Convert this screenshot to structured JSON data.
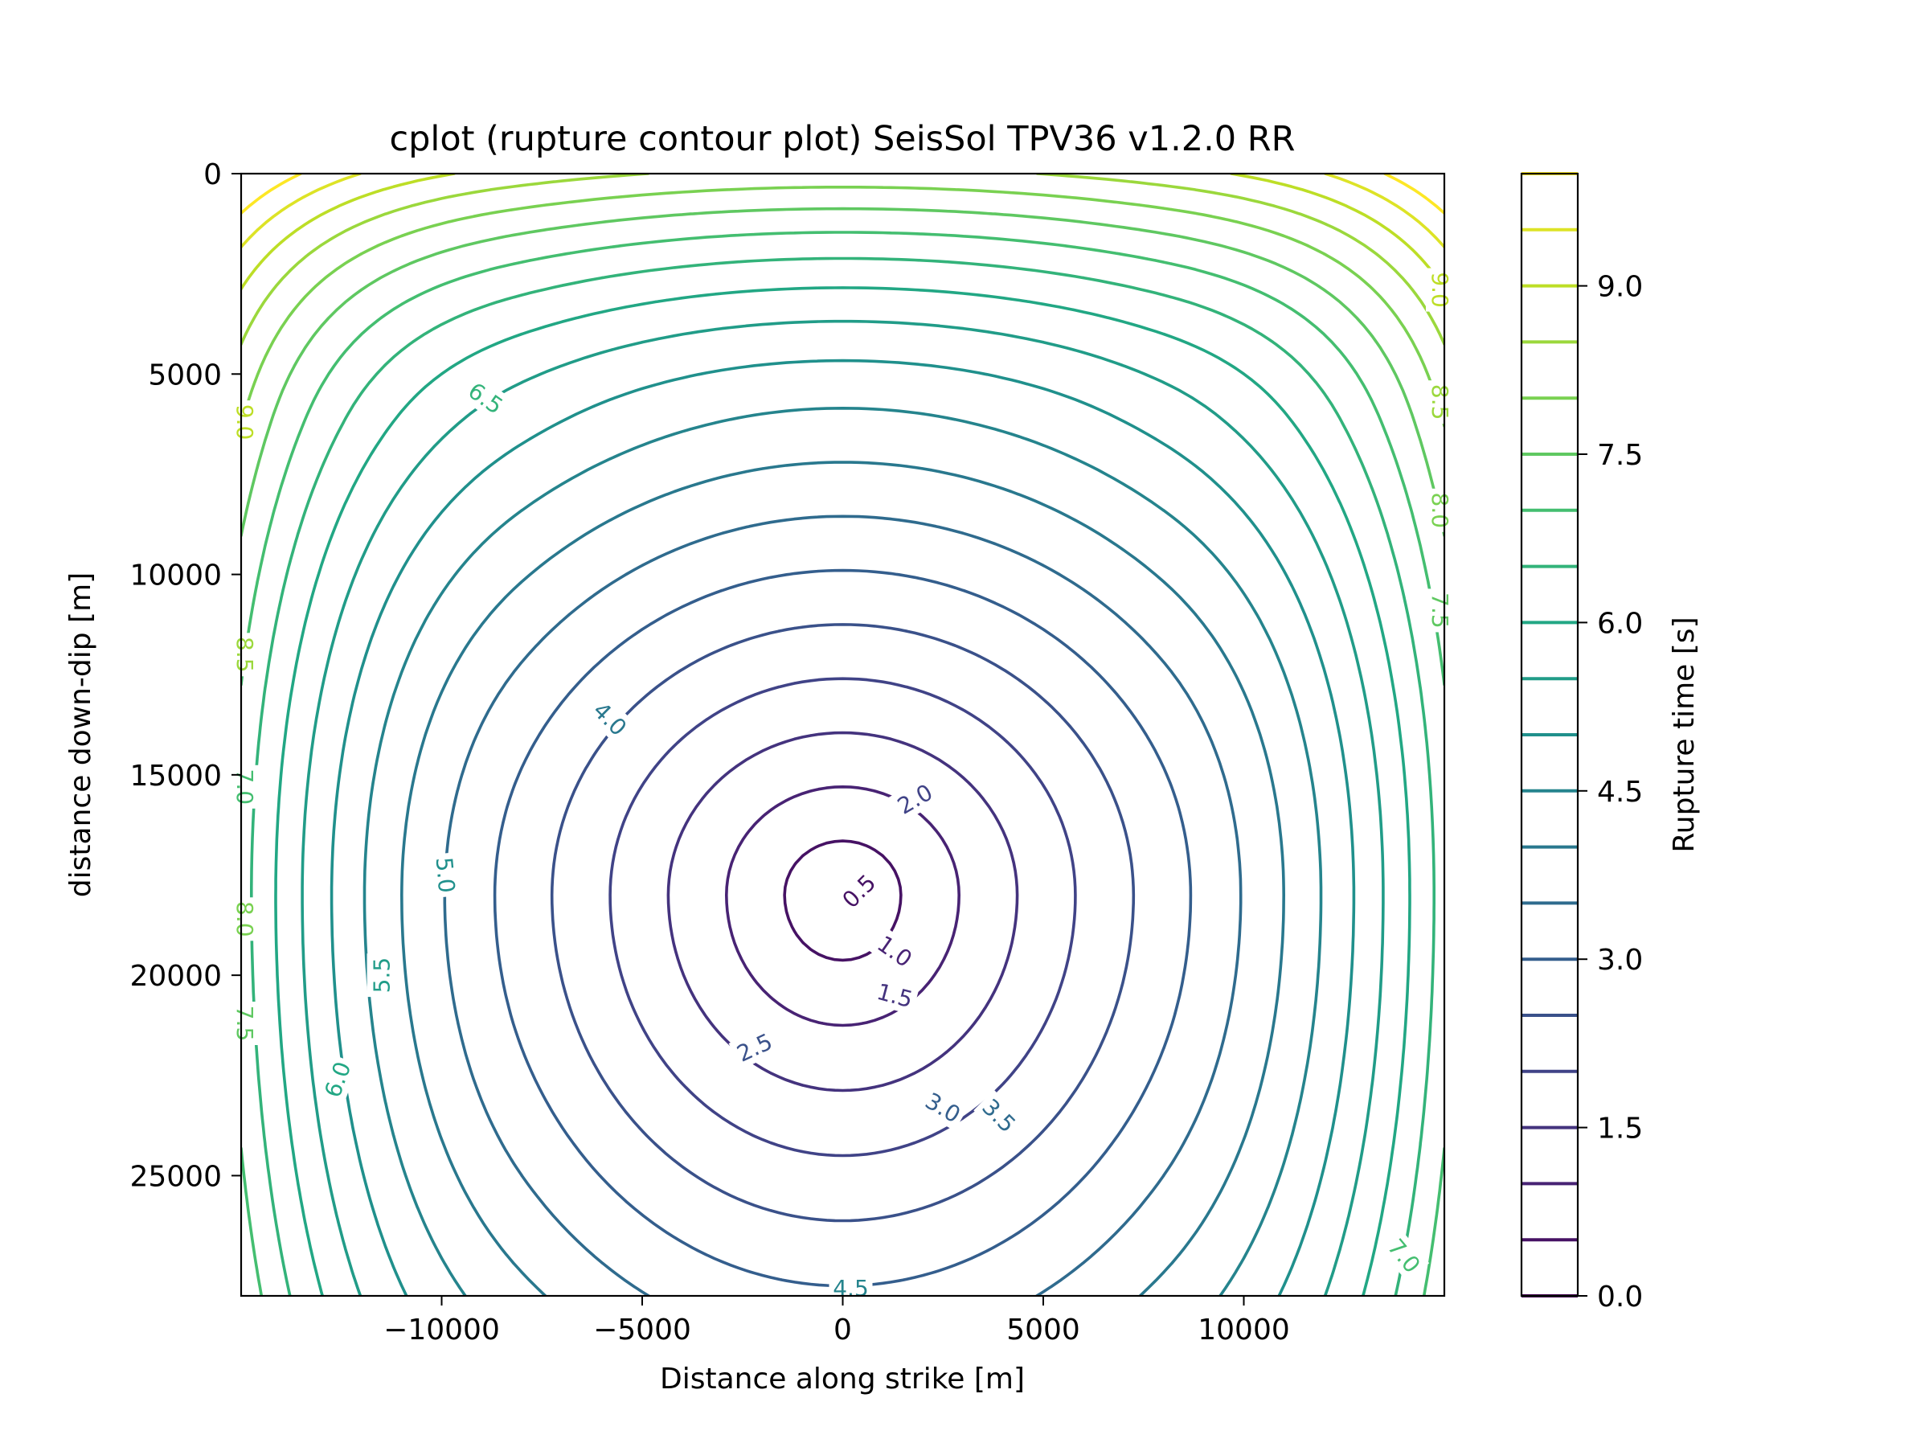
{
  "chart_data": {
    "type": "contour",
    "title": "cplot (rupture contour plot) SeisSol TPV36 v1.2.0 RR",
    "xlabel": "Distance along strike [m]",
    "ylabel": "distance down-dip [m]",
    "xlim": [
      -15000,
      15000
    ],
    "ylim": [
      28000,
      0
    ],
    "y_inverted": true,
    "xticks": [
      -10000,
      -5000,
      0,
      5000,
      10000
    ],
    "xtick_labels": [
      "−10000",
      "−5000",
      "0",
      "5000",
      "10000"
    ],
    "yticks": [
      0,
      5000,
      10000,
      15000,
      20000,
      25000
    ],
    "ytick_labels": [
      "0",
      "5000",
      "10000",
      "15000",
      "20000",
      "25000"
    ],
    "colormap": "viridis",
    "colorbar": {
      "label": "Rupture time [s]",
      "range": [
        0.0,
        10.0
      ],
      "ticks": [
        0.0,
        1.5,
        3.0,
        4.5,
        6.0,
        7.5,
        9.0
      ],
      "tick_labels": [
        "0.0",
        "1.5",
        "3.0",
        "4.5",
        "6.0",
        "7.5",
        "9.0"
      ]
    },
    "hypocenter": {
      "x": 0,
      "y": 18000
    },
    "contour_levels": [
      0.5,
      1.0,
      1.5,
      2.0,
      2.5,
      3.0,
      3.5,
      4.0,
      4.5,
      5.0,
      5.5,
      6.0,
      6.5,
      7.0,
      7.5,
      8.0,
      8.5,
      9.0,
      9.5,
      10.0
    ],
    "contour_labels": [
      {
        "text": "0.5",
        "x": 400,
        "y": 17900,
        "angle": -45
      },
      {
        "text": "1.0",
        "x": 1300,
        "y": 19400,
        "angle": 35
      },
      {
        "text": "1.5",
        "x": 1300,
        "y": 20500,
        "angle": 15
      },
      {
        "text": "2.0",
        "x": 1800,
        "y": 15600,
        "angle": -30
      },
      {
        "text": "2.5",
        "x": -2200,
        "y": 21800,
        "angle": -25
      },
      {
        "text": "3.0",
        "x": 2500,
        "y": 23300,
        "angle": 30
      },
      {
        "text": "3.5",
        "x": 3900,
        "y": 23500,
        "angle": 45
      },
      {
        "text": "4.0",
        "x": -5800,
        "y": 13600,
        "angle": 45
      },
      {
        "text": "4.5",
        "x": 200,
        "y": 27800,
        "angle": 0
      },
      {
        "text": "5.0",
        "x": -9900,
        "y": 17500,
        "angle": 85
      },
      {
        "text": "5.5",
        "x": -11500,
        "y": 20000,
        "angle": -90
      },
      {
        "text": "6.0",
        "x": -12600,
        "y": 22600,
        "angle": -70
      },
      {
        "text": "6.5",
        "x": -8900,
        "y": 5600,
        "angle": 35
      },
      {
        "text": "7.0",
        "x": 14000,
        "y": 27000,
        "angle": 50
      },
      {
        "text": "9.0",
        "x": -14900,
        "y": 6200,
        "angle": 90
      },
      {
        "text": "8.5",
        "x": -14900,
        "y": 12000,
        "angle": 90
      },
      {
        "text": "7.0",
        "x": -14900,
        "y": 15300,
        "angle": 90
      },
      {
        "text": "8.0",
        "x": -14900,
        "y": 18600,
        "angle": 90
      },
      {
        "text": "7.5",
        "x": -14900,
        "y": 21200,
        "angle": 90
      },
      {
        "text": "9.0",
        "x": 14900,
        "y": 2900,
        "angle": 90
      },
      {
        "text": "8.5",
        "x": 14900,
        "y": 5700,
        "angle": 90
      },
      {
        "text": "8.0",
        "x": 14900,
        "y": 8400,
        "angle": 90
      },
      {
        "text": "7.5",
        "x": 14900,
        "y": 10900,
        "angle": 90
      }
    ]
  }
}
